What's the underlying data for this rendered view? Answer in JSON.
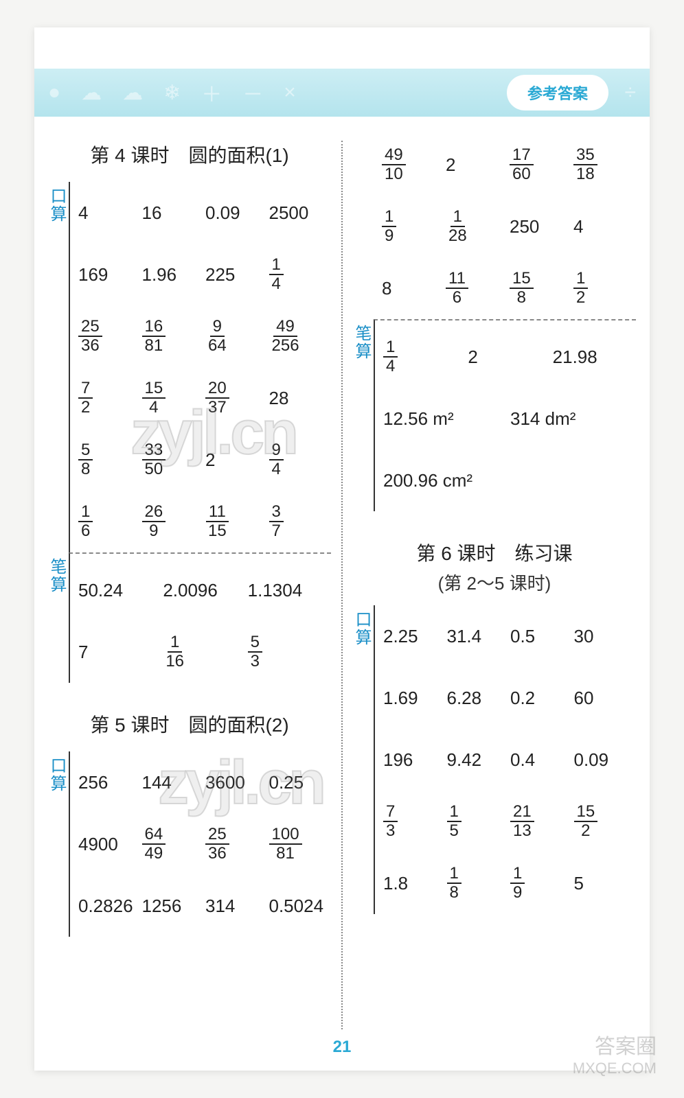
{
  "header": {
    "badge": "参考答案"
  },
  "page_number": "21",
  "watermark_text": "zyjl.cn",
  "corner": {
    "line1": "答案圈",
    "line2": "MXQE.COM"
  },
  "lesson4": {
    "title": "第 4 课时　圆的面积(1)",
    "kousuan_label": "口算",
    "bisuan_label": "笔算",
    "kousuan_rows": [
      [
        "4",
        "16",
        "0.09",
        "2500"
      ],
      [
        "169",
        "1.96",
        "225",
        "1/4"
      ],
      [
        "25/36",
        "16/81",
        "9/64",
        "49/256"
      ],
      [
        "7/2",
        "15/4",
        "20/37",
        "28"
      ],
      [
        "5/8",
        "33/50",
        "2",
        "9/4"
      ],
      [
        "1/6",
        "26/9",
        "11/15",
        "3/7"
      ]
    ],
    "bisuan_rows": [
      [
        "50.24",
        "2.0096",
        "1.1304"
      ],
      [
        "7",
        "1/16",
        "5/3"
      ]
    ]
  },
  "lesson5": {
    "title": "第 5 课时　圆的面积(2)",
    "kousuan_label": "口算",
    "bisuan_label": "笔算",
    "kousuan_rows": [
      [
        "256",
        "144",
        "3600",
        "0.25"
      ],
      [
        "4900",
        "64/49",
        "25/36",
        "100/81"
      ],
      [
        "0.2826",
        "1256",
        "314",
        "0.5024"
      ],
      [
        "49/10",
        "2",
        "17/60",
        "35/18"
      ],
      [
        "1/9",
        "1/28",
        "250",
        "4"
      ],
      [
        "8",
        "11/6",
        "15/8",
        "1/2"
      ]
    ],
    "bisuan_rows": [
      [
        "1/4",
        "2",
        "21.98"
      ],
      [
        "12.56 m²",
        "314 dm²"
      ],
      [
        "200.96 cm²"
      ]
    ]
  },
  "lesson6": {
    "title": "第 6 课时　练习课",
    "subtitle": "(第 2～5 课时)",
    "kousuan_label": "口算",
    "kousuan_rows": [
      [
        "2.25",
        "31.4",
        "0.5",
        "30"
      ],
      [
        "1.69",
        "6.28",
        "0.2",
        "60"
      ],
      [
        "196",
        "9.42",
        "0.4",
        "0.09"
      ],
      [
        "7/3",
        "1/5",
        "21/13",
        "15/2"
      ],
      [
        "1.8",
        "1/8",
        "1/9",
        "5"
      ]
    ]
  },
  "colors": {
    "header_bg_top": "#cdeef4",
    "header_bg_bottom": "#b4e4ed",
    "accent_text": "#2aa9d4",
    "vlabel_text": "#1b8fc7",
    "body_text": "#222222",
    "page_bg": "#f5f5f3"
  }
}
